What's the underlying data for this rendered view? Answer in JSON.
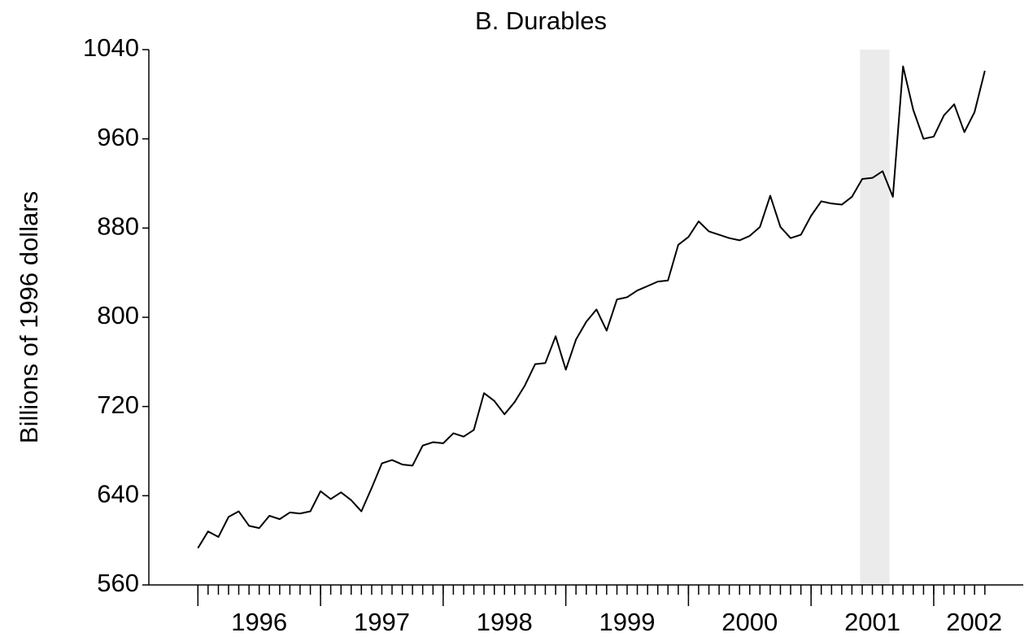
{
  "chart_data": {
    "type": "line",
    "title": "B.  Durables",
    "y_label": "Billions of 1996 dollars",
    "x": [
      1996,
      1996.083,
      1996.167,
      1996.25,
      1996.333,
      1996.417,
      1996.5,
      1996.583,
      1996.667,
      1996.75,
      1996.833,
      1996.917,
      1997,
      1997.083,
      1997.167,
      1997.25,
      1997.333,
      1997.417,
      1997.5,
      1997.583,
      1997.667,
      1997.75,
      1997.833,
      1997.917,
      1998,
      1998.083,
      1998.167,
      1998.25,
      1998.333,
      1998.417,
      1998.5,
      1998.583,
      1998.667,
      1998.75,
      1998.833,
      1998.917,
      1999,
      1999.083,
      1999.167,
      1999.25,
      1999.333,
      1999.417,
      1999.5,
      1999.583,
      1999.667,
      1999.75,
      1999.833,
      1999.917,
      2000,
      2000.083,
      2000.167,
      2000.25,
      2000.333,
      2000.417,
      2000.5,
      2000.583,
      2000.667,
      2000.75,
      2000.833,
      2000.917,
      2001,
      2001.083,
      2001.167,
      2001.25,
      2001.333,
      2001.417,
      2001.5,
      2001.583,
      2001.667,
      2001.75,
      2001.833,
      2001.917,
      2002,
      2002.083,
      2002.167,
      2002.25,
      2002.333,
      2002.417
    ],
    "series": [
      {
        "name": "Durables",
        "color": "#000000",
        "values": [
          593,
          608,
          603,
          621,
          626,
          613,
          611,
          622,
          619,
          625,
          624,
          626,
          644,
          637,
          643,
          636,
          626,
          647,
          669,
          672,
          668,
          667,
          685,
          688,
          687,
          696,
          693,
          699,
          732,
          725,
          713,
          724,
          739,
          758,
          759,
          783,
          753,
          780,
          796,
          807,
          788,
          816,
          818,
          824,
          828,
          832,
          833,
          865,
          872,
          886,
          877,
          874,
          871,
          869,
          873,
          881,
          909,
          881,
          871,
          874,
          891,
          904,
          902,
          901,
          908,
          924,
          925,
          931,
          908,
          1025,
          986,
          960,
          962,
          981,
          991,
          966,
          984,
          1021
        ]
      }
    ],
    "xlim": [
      1995.6,
      2002.73
    ],
    "xmajorticks": [
      1996,
      1997,
      1998,
      1999,
      2000,
      2001,
      2002
    ],
    "xticks": [
      {
        "value": 1996.5,
        "label": "1996"
      },
      {
        "value": 1997.5,
        "label": "1997"
      },
      {
        "value": 1998.5,
        "label": "1998"
      },
      {
        "value": 1999.5,
        "label": "1999"
      },
      {
        "value": 2000.5,
        "label": "2000"
      },
      {
        "value": 2001.5,
        "label": "2001"
      },
      {
        "value": 2002.33,
        "label": "2002"
      }
    ],
    "ylim": [
      560,
      1040
    ],
    "yticks": [
      560,
      640,
      720,
      800,
      880,
      960,
      1040
    ],
    "shaded_region": [
      2001.4,
      2001.64
    ],
    "shade_color": "#ebebeb"
  }
}
